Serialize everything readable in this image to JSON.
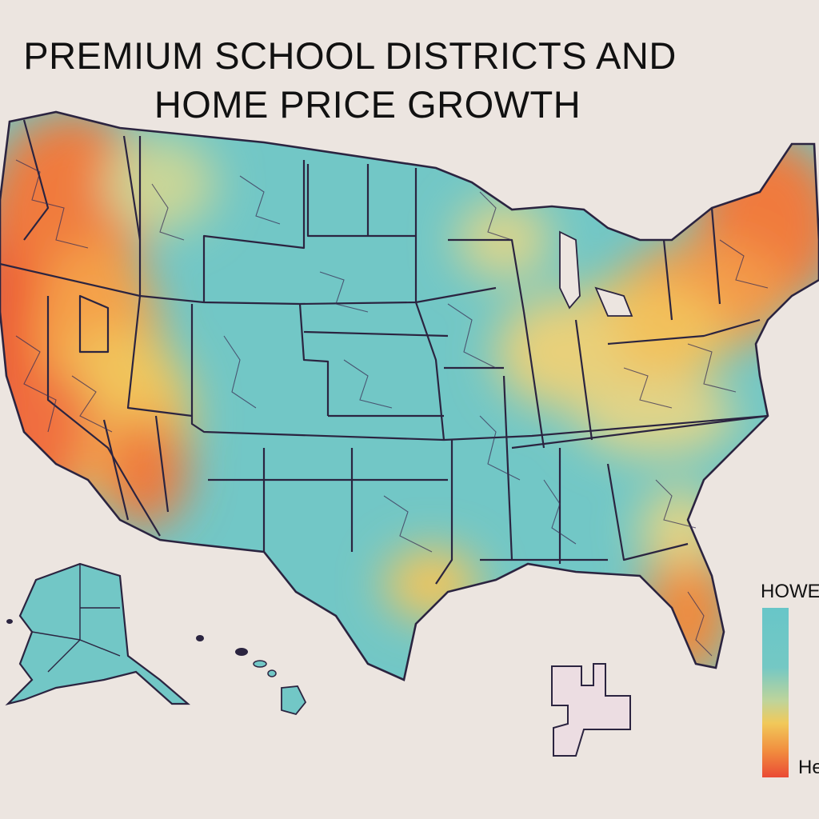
{
  "title": {
    "line1": "PREMIUM SCHOOL DISTRICTS AND",
    "line2": "HOME PRICE GROWTH"
  },
  "legend": {
    "title": "HOWE",
    "bottom_label": "He",
    "scale": {
      "top_color": "#68c6c8",
      "mid_color": "#f1c95a",
      "bottom_color": "#ea4a35"
    }
  },
  "colors": {
    "background": "#ece5e0",
    "low_growth": "#72c7c6",
    "mid_growth": "#f2cb64",
    "high_growth": "#ef6a3a",
    "border": "#2b2440"
  }
}
